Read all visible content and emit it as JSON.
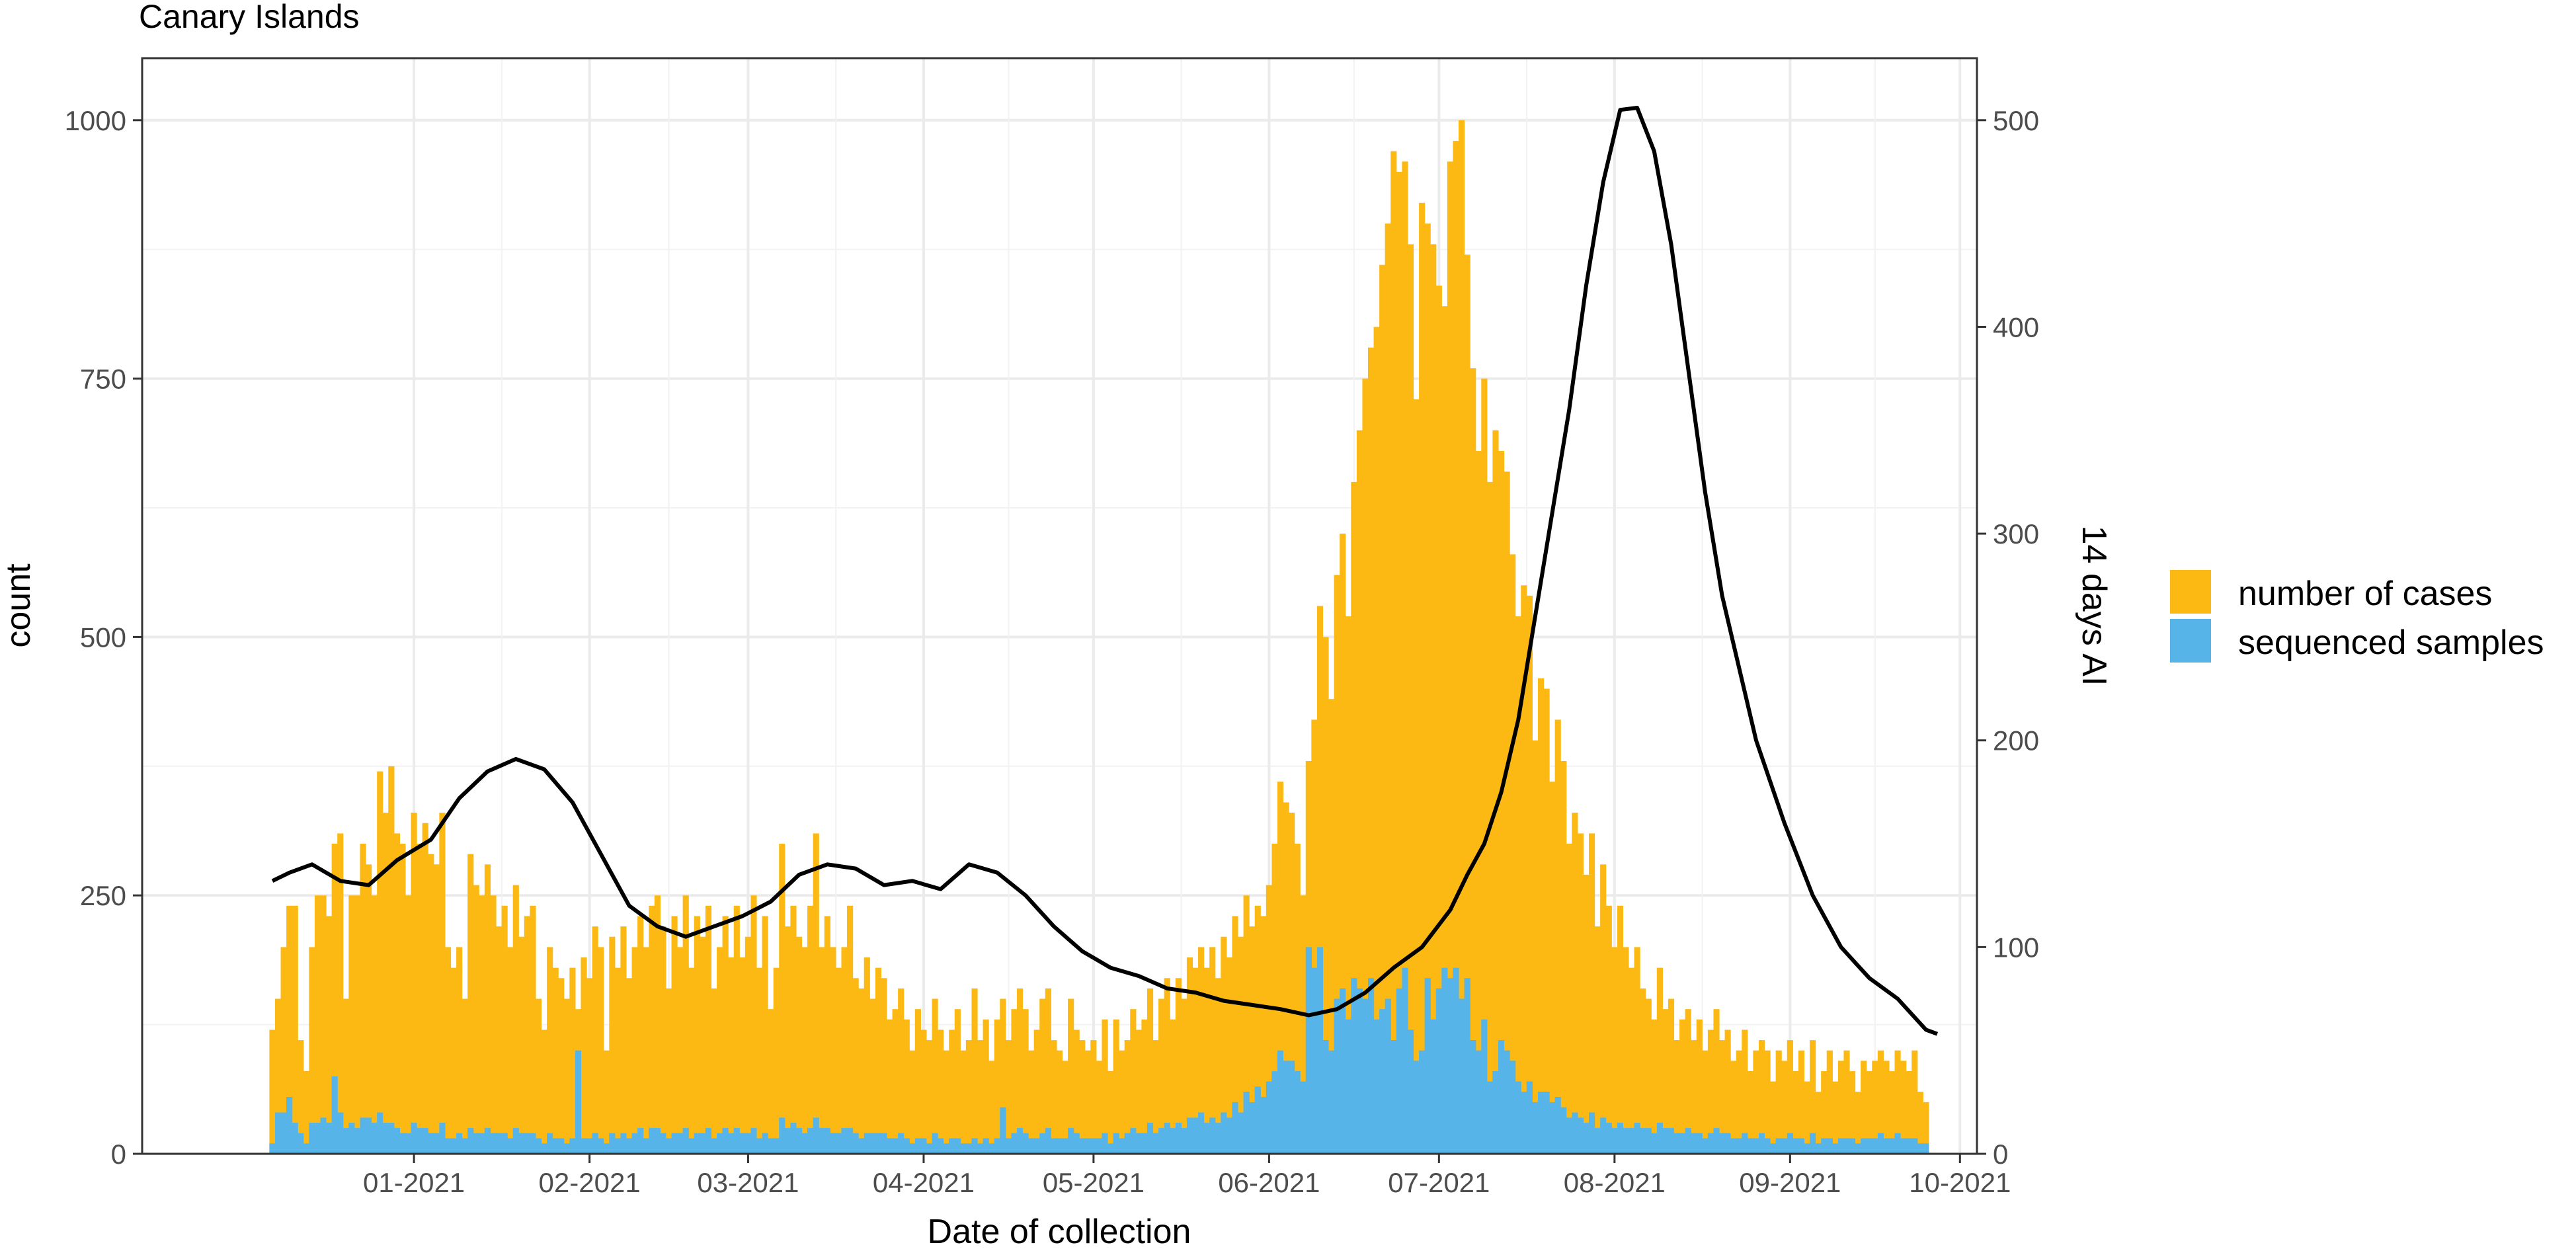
{
  "chart_data": {
    "type": "bar",
    "title": "Canary Islands",
    "xlabel": "Date of collection",
    "ylabel": "count",
    "y2label": "14 days AI",
    "grid": true,
    "legend_position": "right",
    "x_ticks": [
      "01-2021",
      "02-2021",
      "03-2021",
      "04-2021",
      "05-2021",
      "06-2021",
      "07-2021",
      "08-2021",
      "09-2021",
      "10-2021"
    ],
    "x_range": [
      "2020-11-14",
      "2021-10-04"
    ],
    "ylim": [
      0,
      1060
    ],
    "y_ticks": [
      0,
      250,
      500,
      750,
      1000
    ],
    "y2lim": [
      0,
      530
    ],
    "y2_ticks": [
      0,
      100,
      200,
      300,
      400,
      500
    ],
    "series": [
      {
        "name": "number of cases",
        "kind": "bar",
        "color": "#FDB913",
        "start_date": "2020-12-07",
        "points_per_week": 7,
        "values": [
          120,
          150,
          200,
          240,
          240,
          110,
          80,
          200,
          250,
          250,
          230,
          300,
          310,
          150,
          250,
          250,
          300,
          280,
          250,
          370,
          330,
          375,
          310,
          300,
          250,
          330,
          300,
          320,
          290,
          280,
          330,
          200,
          180,
          200,
          150,
          290,
          260,
          250,
          280,
          250,
          220,
          240,
          200,
          260,
          210,
          230,
          240,
          150,
          120,
          200,
          180,
          170,
          150,
          180,
          140,
          190,
          170,
          220,
          200,
          100,
          210,
          180,
          220,
          170,
          200,
          230,
          200,
          240,
          250,
          220,
          160,
          230,
          200,
          250,
          180,
          230,
          210,
          240,
          160,
          200,
          230,
          190,
          240,
          190,
          210,
          250,
          180,
          230,
          140,
          180,
          300,
          220,
          240,
          210,
          200,
          240,
          310,
          200,
          230,
          200,
          180,
          200,
          240,
          170,
          160,
          190,
          150,
          180,
          170,
          130,
          140,
          160,
          130,
          100,
          140,
          120,
          110,
          150,
          120,
          100,
          120,
          140,
          100,
          110,
          160,
          110,
          130,
          90,
          130,
          150,
          110,
          140,
          160,
          140,
          100,
          120,
          150,
          160,
          110,
          100,
          90,
          150,
          120,
          110,
          100,
          110,
          90,
          130,
          80,
          130,
          100,
          110,
          140,
          120,
          130,
          160,
          110,
          150,
          170,
          130,
          170,
          150,
          190,
          180,
          200,
          180,
          200,
          170,
          210,
          190,
          230,
          210,
          250,
          220,
          240,
          230,
          260,
          300,
          360,
          340,
          330,
          300,
          250,
          380,
          420,
          530,
          500,
          440,
          560,
          600,
          520,
          650,
          700,
          750,
          780,
          800,
          860,
          900,
          970,
          950,
          960,
          880,
          730,
          920,
          900,
          880,
          840,
          820,
          960,
          980,
          1000,
          870,
          760,
          680,
          750,
          650,
          700,
          680,
          660,
          580,
          520,
          550,
          540,
          400,
          460,
          450,
          360,
          420,
          380,
          300,
          330,
          310,
          270,
          310,
          220,
          280,
          240,
          200,
          240,
          200,
          180,
          200,
          160,
          150,
          130,
          180,
          140,
          150,
          110,
          130,
          140,
          110,
          130,
          100,
          120,
          140,
          110,
          120,
          90,
          100,
          120,
          80,
          100,
          110,
          100,
          70,
          100,
          90,
          110,
          80,
          100,
          70,
          110,
          60,
          80,
          100,
          70,
          90,
          100,
          80,
          60,
          90,
          80,
          90,
          100,
          90,
          80,
          100,
          90,
          80,
          100,
          60,
          50
        ]
      },
      {
        "name": "sequenced samples",
        "kind": "bar",
        "color": "#56B4E9",
        "start_date": "2020-12-07",
        "points_per_week": 7,
        "values": [
          10,
          40,
          40,
          55,
          30,
          20,
          10,
          30,
          30,
          35,
          30,
          75,
          40,
          25,
          30,
          25,
          35,
          35,
          30,
          40,
          30,
          30,
          25,
          20,
          20,
          30,
          25,
          25,
          20,
          20,
          30,
          15,
          15,
          20,
          15,
          25,
          20,
          20,
          25,
          20,
          20,
          20,
          15,
          25,
          20,
          20,
          20,
          15,
          10,
          20,
          15,
          15,
          10,
          15,
          100,
          15,
          15,
          20,
          15,
          10,
          20,
          15,
          20,
          15,
          20,
          25,
          15,
          25,
          25,
          20,
          15,
          20,
          20,
          25,
          15,
          20,
          20,
          25,
          15,
          20,
          25,
          20,
          25,
          20,
          20,
          25,
          15,
          20,
          15,
          15,
          35,
          25,
          30,
          25,
          20,
          25,
          35,
          25,
          25,
          20,
          20,
          25,
          25,
          20,
          15,
          20,
          20,
          20,
          20,
          15,
          15,
          20,
          15,
          10,
          15,
          15,
          10,
          20,
          15,
          10,
          15,
          15,
          10,
          10,
          15,
          10,
          15,
          10,
          15,
          45,
          15,
          20,
          25,
          20,
          15,
          15,
          20,
          25,
          15,
          15,
          15,
          25,
          20,
          15,
          15,
          15,
          15,
          20,
          10,
          20,
          15,
          20,
          25,
          20,
          20,
          30,
          20,
          25,
          30,
          25,
          30,
          25,
          35,
          35,
          40,
          30,
          35,
          30,
          40,
          35,
          50,
          40,
          60,
          50,
          65,
          55,
          70,
          80,
          100,
          90,
          90,
          80,
          70,
          200,
          180,
          200,
          110,
          100,
          150,
          160,
          130,
          170,
          160,
          150,
          170,
          130,
          140,
          150,
          110,
          160,
          180,
          120,
          90,
          100,
          170,
          130,
          160,
          180,
          170,
          180,
          150,
          170,
          110,
          100,
          130,
          70,
          80,
          110,
          100,
          90,
          70,
          60,
          70,
          50,
          60,
          60,
          50,
          55,
          45,
          35,
          40,
          35,
          30,
          40,
          25,
          35,
          30,
          25,
          30,
          25,
          25,
          30,
          25,
          25,
          20,
          30,
          25,
          25,
          20,
          20,
          25,
          20,
          20,
          15,
          20,
          25,
          20,
          20,
          15,
          15,
          20,
          15,
          15,
          20,
          15,
          10,
          15,
          15,
          20,
          15,
          15,
          10,
          20,
          10,
          15,
          15,
          10,
          15,
          15,
          15,
          10,
          15,
          15,
          15,
          20,
          15,
          15,
          20,
          15,
          15,
          15,
          10,
          10
        ]
      },
      {
        "name": "14 days AI",
        "kind": "line",
        "axis": "right",
        "color": "#000000",
        "x": [
          "2020-12-07",
          "2020-12-10",
          "2020-12-14",
          "2020-12-19",
          "2020-12-24",
          "2020-12-29",
          "2021-01-04",
          "2021-01-09",
          "2021-01-14",
          "2021-01-19",
          "2021-01-24",
          "2021-01-29",
          "2021-02-03",
          "2021-02-08",
          "2021-02-13",
          "2021-02-18",
          "2021-02-23",
          "2021-02-28",
          "2021-03-05",
          "2021-03-10",
          "2021-03-15",
          "2021-03-20",
          "2021-03-25",
          "2021-03-30",
          "2021-04-04",
          "2021-04-09",
          "2021-04-14",
          "2021-04-19",
          "2021-04-24",
          "2021-04-29",
          "2021-05-04",
          "2021-05-09",
          "2021-05-14",
          "2021-05-19",
          "2021-05-24",
          "2021-05-29",
          "2021-06-03",
          "2021-06-08",
          "2021-06-13",
          "2021-06-18",
          "2021-06-23",
          "2021-06-28",
          "2021-07-03",
          "2021-07-06",
          "2021-07-09",
          "2021-07-12",
          "2021-07-15",
          "2021-07-18",
          "2021-07-21",
          "2021-07-24",
          "2021-07-27",
          "2021-07-30",
          "2021-08-02",
          "2021-08-05",
          "2021-08-08",
          "2021-08-11",
          "2021-08-14",
          "2021-08-17",
          "2021-08-20",
          "2021-08-23",
          "2021-08-26",
          "2021-08-31",
          "2021-09-05",
          "2021-09-10",
          "2021-09-15",
          "2021-09-20",
          "2021-09-25",
          "2021-09-27"
        ],
        "values": [
          132,
          136,
          140,
          132,
          130,
          142,
          152,
          172,
          185,
          191,
          186,
          170,
          145,
          120,
          110,
          105,
          110,
          115,
          122,
          135,
          140,
          138,
          130,
          132,
          128,
          140,
          136,
          125,
          110,
          98,
          90,
          86,
          80,
          78,
          74,
          72,
          70,
          67,
          70,
          78,
          90,
          100,
          118,
          135,
          150,
          175,
          210,
          260,
          310,
          360,
          420,
          470,
          505,
          506,
          485,
          440,
          380,
          320,
          270,
          235,
          200,
          160,
          125,
          100,
          85,
          75,
          60,
          58
        ]
      }
    ]
  }
}
